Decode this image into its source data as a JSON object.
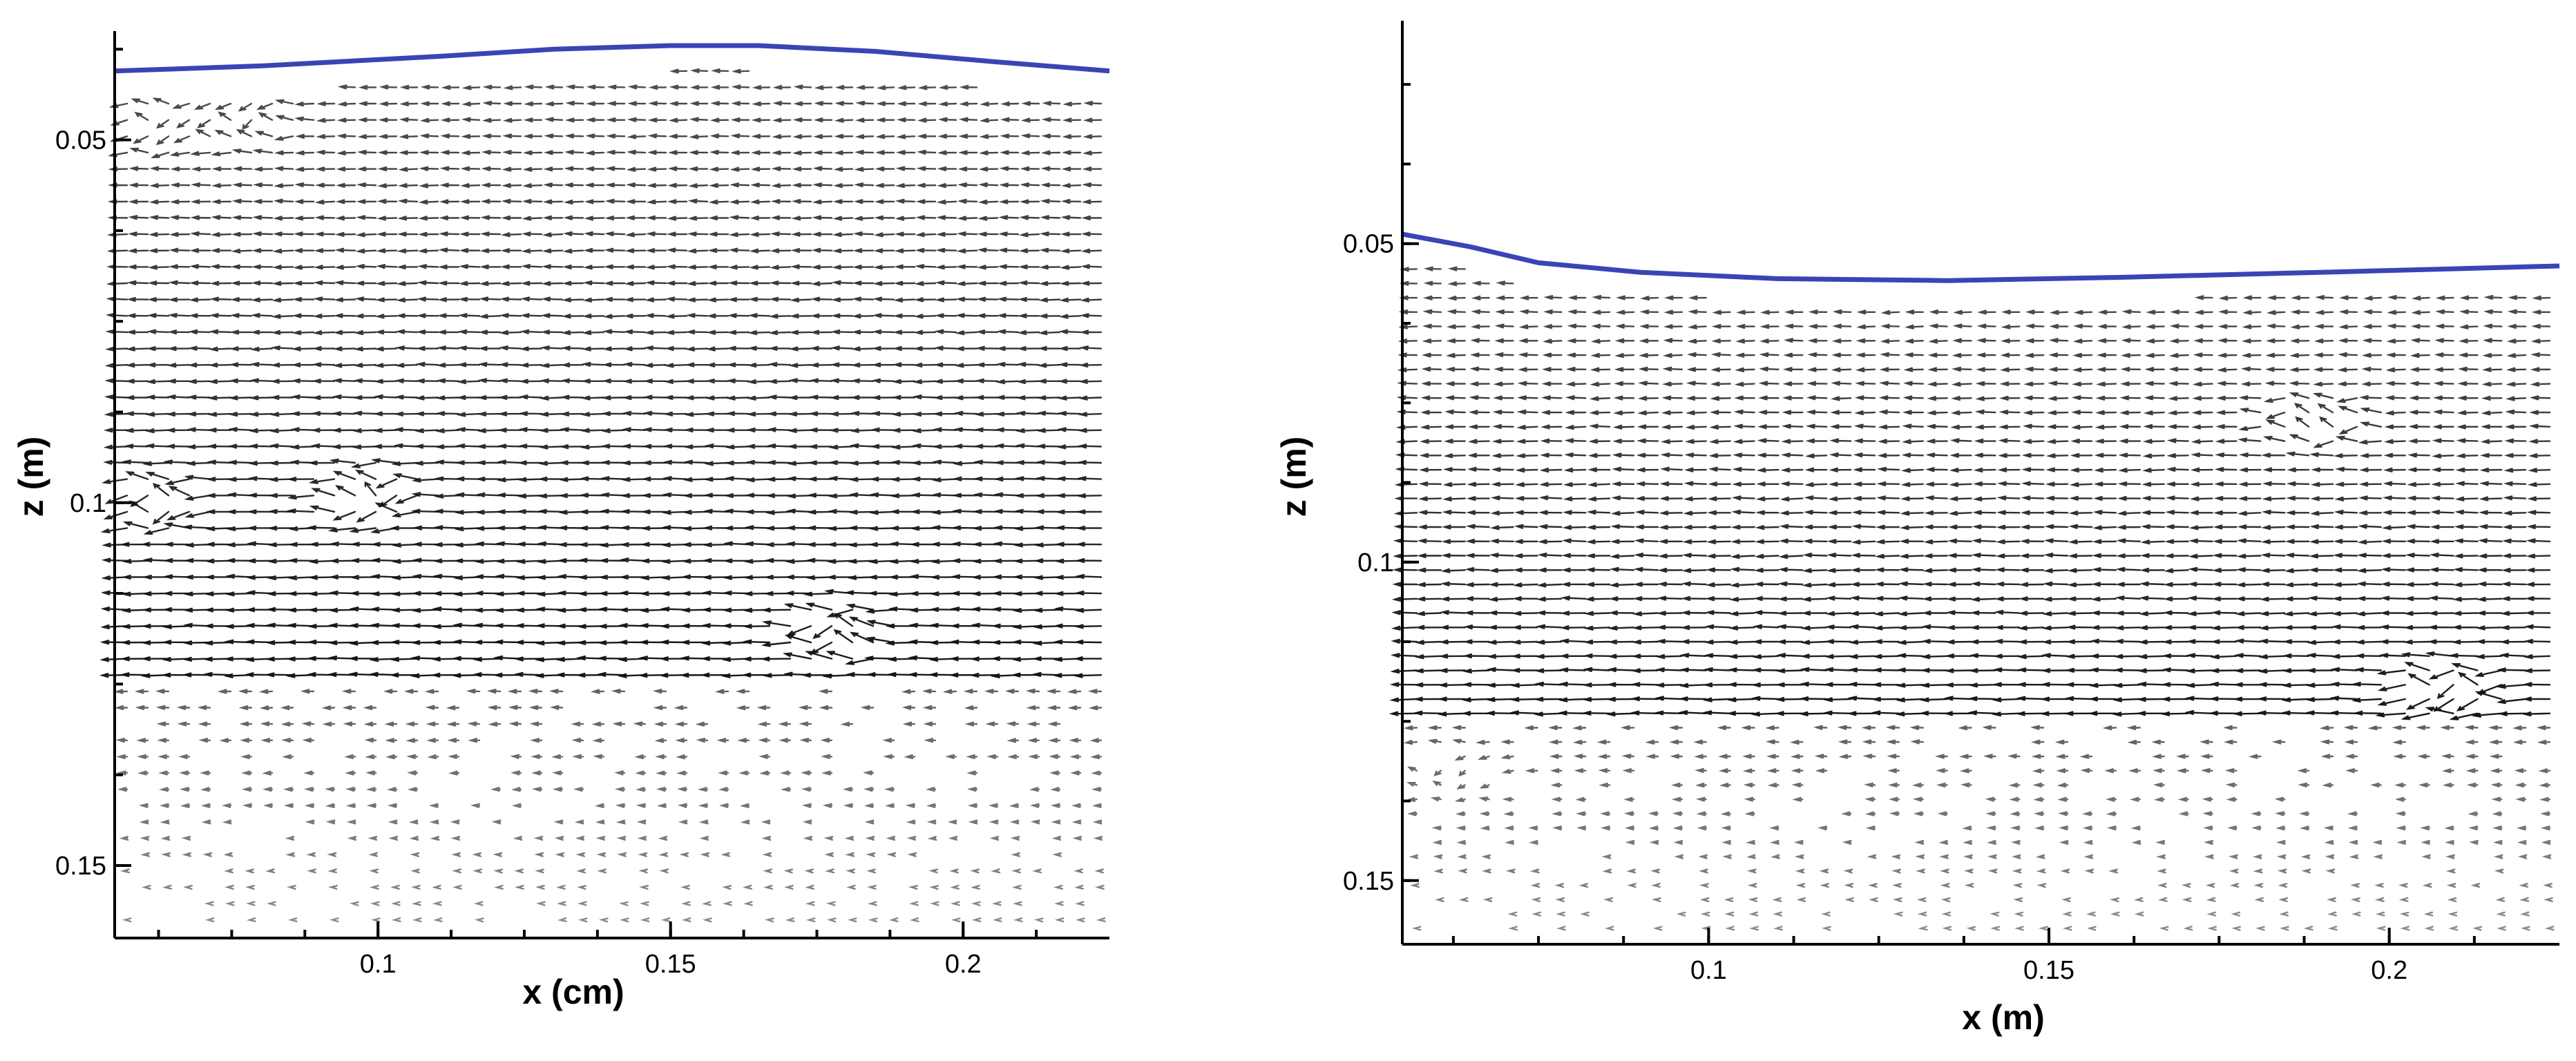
{
  "chart_data": [
    {
      "type": "vector-field",
      "title": "",
      "xlabel": "x (cm)",
      "ylabel": "z (m)",
      "xlim": [
        0.055,
        0.225
      ],
      "ylim": [
        0.035,
        0.16
      ],
      "y_inverted": true,
      "xticks": [
        0.1,
        0.15,
        0.2
      ],
      "xtick_labels": [
        "0.1",
        "0.15",
        "0.2"
      ],
      "yticks": [
        0.05,
        0.1,
        0.15
      ],
      "ytick_labels": [
        "0.05",
        "0.1",
        "0.15"
      ],
      "surface_color": "#3b44b5",
      "surface": {
        "x": [
          0.055,
          0.08,
          0.11,
          0.13,
          0.15,
          0.165,
          0.185,
          0.205,
          0.225
        ],
        "z": [
          0.0405,
          0.0398,
          0.0385,
          0.0375,
          0.037,
          0.037,
          0.0378,
          0.0392,
          0.0405
        ]
      },
      "flow": {
        "strong_region_z": [
          0.042,
          0.125
        ],
        "weak_region_z": [
          0.125,
          0.16
        ],
        "mean_direction": "negative-x",
        "vortices": [
          {
            "x": 0.063,
            "z": 0.048
          },
          {
            "x": 0.078,
            "z": 0.047
          },
          {
            "x": 0.063,
            "z": 0.1
          },
          {
            "x": 0.1,
            "z": 0.099
          },
          {
            "x": 0.18,
            "z": 0.118
          }
        ]
      }
    },
    {
      "type": "vector-field",
      "title": "",
      "xlabel": "x (m)",
      "ylabel": "z (m)",
      "xlim": [
        0.055,
        0.225
      ],
      "ylim": [
        0.015,
        0.16
      ],
      "y_inverted": true,
      "xticks": [
        0.1,
        0.15,
        0.2
      ],
      "xtick_labels": [
        "0.1",
        "0.15",
        "0.2"
      ],
      "yticks": [
        0.05,
        0.1,
        0.15
      ],
      "ytick_labels": [
        "0.05",
        "0.1",
        "0.15"
      ],
      "surface_color": "#3b44b5",
      "surface": {
        "x": [
          0.055,
          0.065,
          0.075,
          0.09,
          0.11,
          0.135,
          0.16,
          0.19,
          0.225
        ],
        "z": [
          0.0485,
          0.0505,
          0.053,
          0.0545,
          0.0555,
          0.0558,
          0.0553,
          0.0545,
          0.0535
        ]
      },
      "flow": {
        "strong_region_z": [
          0.056,
          0.125
        ],
        "weak_region_z": [
          0.125,
          0.16
        ],
        "mean_direction": "negative-x",
        "vortices": [
          {
            "x": 0.19,
            "z": 0.078
          },
          {
            "x": 0.21,
            "z": 0.12
          },
          {
            "x": 0.063,
            "z": 0.133
          }
        ]
      }
    }
  ]
}
